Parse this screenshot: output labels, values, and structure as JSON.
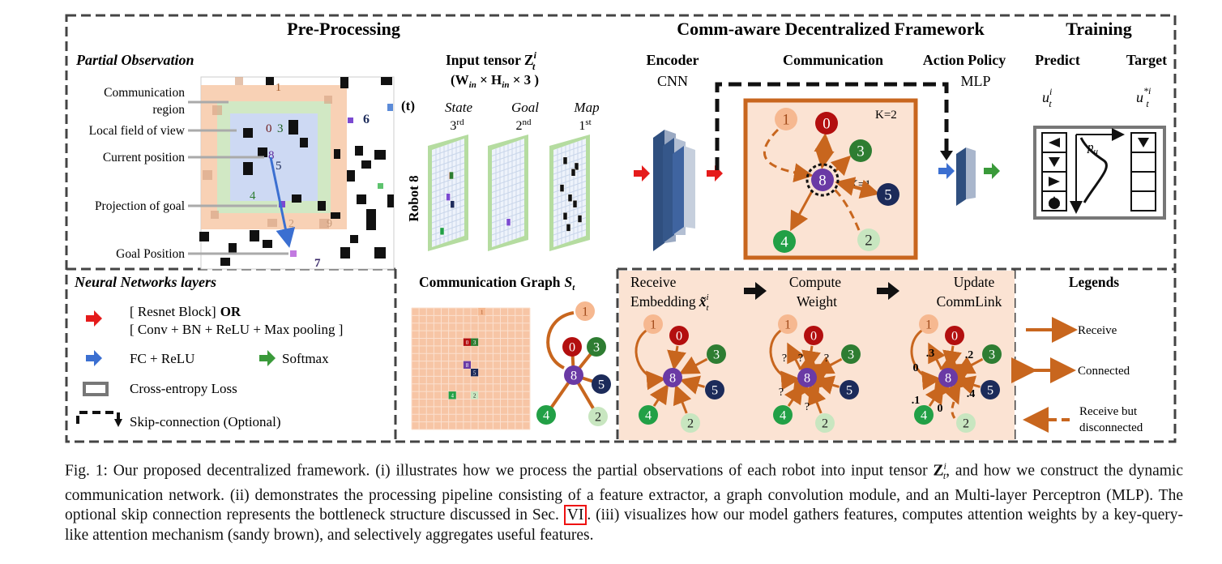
{
  "sections": {
    "preprocessing": "Pre-Processing",
    "framework": "Comm-aware Decentralized Framework",
    "training": "Training",
    "nn_layers": "Neural Networks layers",
    "comm_graph": "Communication Graph",
    "comm_graph_sym": "S",
    "comm_graph_sub": "t",
    "legends": "Legends"
  },
  "partial_obs": {
    "title": "Partial Observation",
    "labels": [
      "Communication",
      "region",
      "Local field of view",
      "Current position",
      "Projection of goal",
      "Goal Position"
    ],
    "grid_numbers": [
      "1",
      "0",
      "3",
      "8",
      "5",
      "6",
      "4",
      "2",
      "9",
      "7"
    ]
  },
  "input_tensor": {
    "title": "Input tensor Z",
    "sup": "i",
    "sub": "t",
    "dims": "(W",
    "dims_in1": "in",
    "dims_times": " × H",
    "dims_in2": "in",
    "dims_end": " × 3 )",
    "time_label": "(t)",
    "channels": [
      {
        "name": "State",
        "order": "3",
        "order_suffix": "rd"
      },
      {
        "name": "Goal",
        "order": "2",
        "order_suffix": "nd"
      },
      {
        "name": "Map",
        "order": "1",
        "order_suffix": "st"
      }
    ],
    "robot_label": "Robot 8"
  },
  "framework": {
    "encoder": "Encoder",
    "encoder_type": "CNN",
    "communication": "Communication",
    "action_policy": "Action Policy",
    "action_type": "MLP",
    "k2": "K=2",
    "k1": "K=1",
    "nodes": [
      "1",
      "0",
      "3",
      "8",
      "5",
      "4",
      "2"
    ]
  },
  "training": {
    "predict": "Predict",
    "target": "Target",
    "u": "u",
    "u_target": "u",
    "star": "*",
    "i": "i",
    "t": "t",
    "pu": "p",
    "pu_sub": "u"
  },
  "nn_legend": {
    "resnet": "[ Resnet Block]",
    "or": "OR",
    "conv": "[ Conv + BN + ReLU + Max pooling ]",
    "fc": "FC + ReLU",
    "softmax": "Softmax",
    "loss": "Cross-entropy Loss",
    "skip": "Skip-connection (Optional)"
  },
  "comm_grid_numbers": [
    "1",
    "0",
    "3",
    "8",
    "5",
    "4",
    "2"
  ],
  "gat_steps": {
    "receive": "Receive",
    "embedding": "Embedding",
    "x_tilde": "x̃",
    "i": "i",
    "t": "t",
    "compute": "Compute",
    "weight": "Weight",
    "update": "Update",
    "commlink": "CommLink",
    "question": "?",
    "weights": [
      ".3",
      ".2",
      "0",
      ".4",
      ".1",
      "0"
    ]
  },
  "legend_items": [
    "Receive",
    "Connected",
    "Receive but",
    "disconnected"
  ],
  "caption": {
    "p1": "Fig. 1: Our proposed decentralized framework. (i) illustrates how we process the partial observations of each robot into input tensor ",
    "z": "Z",
    "z_sup": "i",
    "z_sub": "t",
    "p2": ", and how we construct the dynamic communication network. (ii) demonstrates the processing pipeline consisting of a feature extractor, a graph convolution module, and an Multi-layer Perceptron (MLP). The optional skip connection represents the bottleneck structure discussed in Sec. ",
    "ref": "VI",
    "p3": ". (iii) visualizes how our model gathers features, computes attention weights by a key-query-like attention mechanism (sandy brown), and selectively aggregates useful features."
  },
  "colors": {
    "orange_arrow": "#c8661e",
    "comm_bg": "#fbe3d3",
    "node_red": "#b30f0f",
    "node_green_dark": "#2e7d32",
    "node_green": "#22a046",
    "node_navy": "#1c2b5a",
    "node_peach": "#f6b890",
    "node_light_green": "#c8e6c0",
    "node_purple": "#6a3aa5"
  }
}
